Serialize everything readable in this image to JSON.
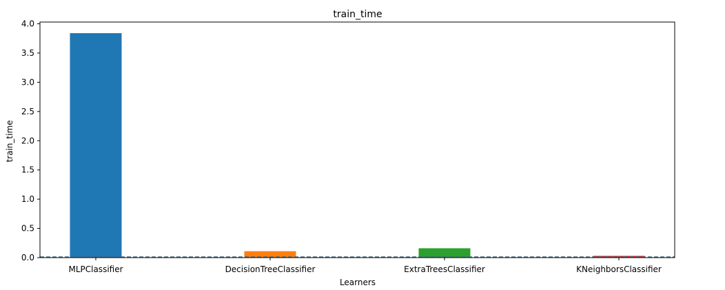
{
  "chart_data": {
    "type": "bar",
    "title": "train_time",
    "xlabel": "Learners",
    "ylabel": "train_time",
    "categories": [
      "MLPClassifier",
      "DecisionTreeClassifier",
      "ExtraTreesClassifier",
      "KNeighborsClassifier"
    ],
    "values": [
      3.84,
      0.11,
      0.16,
      0.03
    ],
    "colors": [
      "#1f77b4",
      "#ff7f0e",
      "#2ca02c",
      "#d62728"
    ],
    "ylim": [
      0,
      4.03
    ],
    "yticks": [
      "0.0",
      "0.5",
      "1.0",
      "1.5",
      "2.0",
      "2.5",
      "3.0",
      "3.5",
      "4.0"
    ],
    "reference_line": {
      "y": 0.0,
      "style": "dashed",
      "color": "#4a6f8a"
    },
    "grid": false,
    "legend": "none"
  }
}
